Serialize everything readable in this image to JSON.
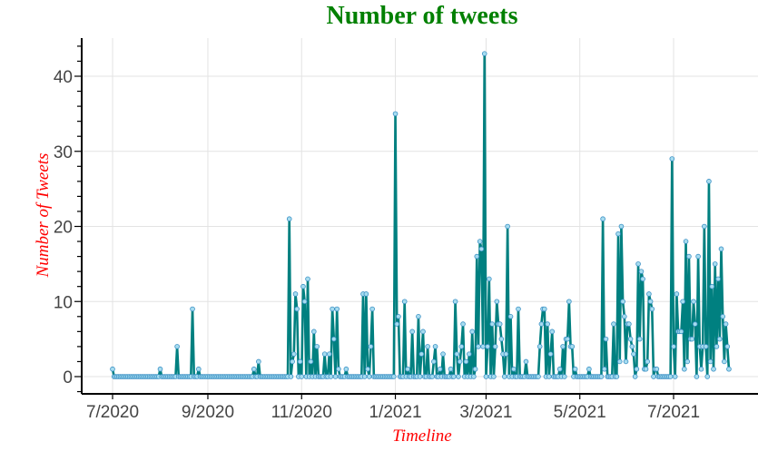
{
  "chart_data": {
    "type": "line",
    "title": "Number of tweets",
    "xlabel": "Timeline",
    "ylabel": "Number of Tweets",
    "ylim": [
      -2,
      45
    ],
    "grid": true,
    "legend": null,
    "x_ticks": [
      "7/2020",
      "9/2020",
      "11/2020",
      "1/2021",
      "3/2021",
      "5/2021",
      "7/2021"
    ],
    "y_ticks": [
      0,
      10,
      20,
      30,
      40
    ],
    "start_date": "2020-07-01",
    "line_color": "#008080",
    "marker_color": "#a6dcef",
    "marker_edge": "#3a8fc4",
    "peaks": [
      {
        "x": "2020-07-01",
        "y": 1
      },
      {
        "x": "2020-08-01",
        "y": 1
      },
      {
        "x": "2020-08-12",
        "y": 4
      },
      {
        "x": "2020-08-22",
        "y": 9
      },
      {
        "x": "2020-08-26",
        "y": 1
      },
      {
        "x": "2020-10-01",
        "y": 1
      },
      {
        "x": "2020-10-04",
        "y": 2
      },
      {
        "x": "2020-10-24",
        "y": 21
      },
      {
        "x": "2020-10-26",
        "y": 2
      },
      {
        "x": "2020-10-27",
        "y": 3
      },
      {
        "x": "2020-10-28",
        "y": 11
      },
      {
        "x": "2020-10-29",
        "y": 9
      },
      {
        "x": "2020-10-31",
        "y": 2
      },
      {
        "x": "2020-11-02",
        "y": 12
      },
      {
        "x": "2020-11-03",
        "y": 10
      },
      {
        "x": "2020-11-05",
        "y": 13
      },
      {
        "x": "2020-11-07",
        "y": 2
      },
      {
        "x": "2020-11-09",
        "y": 6
      },
      {
        "x": "2020-11-11",
        "y": 4
      },
      {
        "x": "2020-11-16",
        "y": 3
      },
      {
        "x": "2020-11-19",
        "y": 3
      },
      {
        "x": "2020-11-21",
        "y": 9
      },
      {
        "x": "2020-11-22",
        "y": 5
      },
      {
        "x": "2020-11-24",
        "y": 9
      },
      {
        "x": "2020-11-25",
        "y": 1
      },
      {
        "x": "2020-11-30",
        "y": 1
      },
      {
        "x": "2020-12-11",
        "y": 11
      },
      {
        "x": "2020-12-13",
        "y": 11
      },
      {
        "x": "2020-12-14",
        "y": 1
      },
      {
        "x": "2020-12-16",
        "y": 4
      },
      {
        "x": "2020-12-17",
        "y": 9
      },
      {
        "x": "2021-01-01",
        "y": 35
      },
      {
        "x": "2021-01-02",
        "y": 7
      },
      {
        "x": "2021-01-03",
        "y": 8
      },
      {
        "x": "2021-01-07",
        "y": 10
      },
      {
        "x": "2021-01-09",
        "y": 1
      },
      {
        "x": "2021-01-12",
        "y": 6
      },
      {
        "x": "2021-01-16",
        "y": 8
      },
      {
        "x": "2021-01-18",
        "y": 3
      },
      {
        "x": "2021-01-19",
        "y": 6
      },
      {
        "x": "2021-01-22",
        "y": 4
      },
      {
        "x": "2021-01-26",
        "y": 2
      },
      {
        "x": "2021-01-27",
        "y": 4
      },
      {
        "x": "2021-01-30",
        "y": 1
      },
      {
        "x": "2021-02-01",
        "y": 3
      },
      {
        "x": "2021-02-06",
        "y": 1
      },
      {
        "x": "2021-02-09",
        "y": 10
      },
      {
        "x": "2021-02-10",
        "y": 3
      },
      {
        "x": "2021-02-12",
        "y": 2
      },
      {
        "x": "2021-02-13",
        "y": 4
      },
      {
        "x": "2021-02-14",
        "y": 7
      },
      {
        "x": "2021-02-16",
        "y": 2
      },
      {
        "x": "2021-02-18",
        "y": 3
      },
      {
        "x": "2021-02-20",
        "y": 6
      },
      {
        "x": "2021-02-22",
        "y": 1
      },
      {
        "x": "2021-02-23",
        "y": 16
      },
      {
        "x": "2021-02-24",
        "y": 4
      },
      {
        "x": "2021-02-25",
        "y": 18
      },
      {
        "x": "2021-02-26",
        "y": 17
      },
      {
        "x": "2021-02-27",
        "y": 4
      },
      {
        "x": "2021-02-28",
        "y": 43
      },
      {
        "x": "2021-03-02",
        "y": 4
      },
      {
        "x": "2021-03-03",
        "y": 13
      },
      {
        "x": "2021-03-05",
        "y": 7
      },
      {
        "x": "2021-03-07",
        "y": 4
      },
      {
        "x": "2021-03-08",
        "y": 10
      },
      {
        "x": "2021-03-09",
        "y": 7
      },
      {
        "x": "2021-03-10",
        "y": 7
      },
      {
        "x": "2021-03-11",
        "y": 5
      },
      {
        "x": "2021-03-12",
        "y": 3
      },
      {
        "x": "2021-03-14",
        "y": 3
      },
      {
        "x": "2021-03-15",
        "y": 20
      },
      {
        "x": "2021-03-17",
        "y": 8
      },
      {
        "x": "2021-03-19",
        "y": 1
      },
      {
        "x": "2021-03-22",
        "y": 9
      },
      {
        "x": "2021-03-27",
        "y": 2
      },
      {
        "x": "2021-04-05",
        "y": 4
      },
      {
        "x": "2021-04-06",
        "y": 7
      },
      {
        "x": "2021-04-07",
        "y": 9
      },
      {
        "x": "2021-04-08",
        "y": 9
      },
      {
        "x": "2021-04-10",
        "y": 7
      },
      {
        "x": "2021-04-12",
        "y": 3
      },
      {
        "x": "2021-04-13",
        "y": 6
      },
      {
        "x": "2021-04-18",
        "y": 1
      },
      {
        "x": "2021-04-20",
        "y": 4
      },
      {
        "x": "2021-04-22",
        "y": 5
      },
      {
        "x": "2021-04-23",
        "y": 5
      },
      {
        "x": "2021-04-24",
        "y": 10
      },
      {
        "x": "2021-04-25",
        "y": 4
      },
      {
        "x": "2021-04-26",
        "y": 4
      },
      {
        "x": "2021-04-28",
        "y": 1
      },
      {
        "x": "2021-05-07",
        "y": 1
      },
      {
        "x": "2021-05-16",
        "y": 21
      },
      {
        "x": "2021-05-17",
        "y": 1
      },
      {
        "x": "2021-05-18",
        "y": 5
      },
      {
        "x": "2021-05-23",
        "y": 7
      },
      {
        "x": "2021-05-26",
        "y": 19
      },
      {
        "x": "2021-05-27",
        "y": 2
      },
      {
        "x": "2021-05-28",
        "y": 20
      },
      {
        "x": "2021-05-29",
        "y": 10
      },
      {
        "x": "2021-05-30",
        "y": 8
      },
      {
        "x": "2021-05-31",
        "y": 2
      },
      {
        "x": "2021-06-01",
        "y": 7
      },
      {
        "x": "2021-06-02",
        "y": 7
      },
      {
        "x": "2021-06-03",
        "y": 5
      },
      {
        "x": "2021-06-04",
        "y": 4
      },
      {
        "x": "2021-06-05",
        "y": 3
      },
      {
        "x": "2021-06-07",
        "y": 1
      },
      {
        "x": "2021-06-08",
        "y": 15
      },
      {
        "x": "2021-06-09",
        "y": 5
      },
      {
        "x": "2021-06-10",
        "y": 14
      },
      {
        "x": "2021-06-11",
        "y": 13
      },
      {
        "x": "2021-06-12",
        "y": 1
      },
      {
        "x": "2021-06-13",
        "y": 1
      },
      {
        "x": "2021-06-14",
        "y": 2
      },
      {
        "x": "2021-06-15",
        "y": 11
      },
      {
        "x": "2021-06-16",
        "y": 10
      },
      {
        "x": "2021-06-17",
        "y": 9
      },
      {
        "x": "2021-06-19",
        "y": 1
      },
      {
        "x": "2021-06-20",
        "y": 1
      },
      {
        "x": "2021-06-30",
        "y": 29
      },
      {
        "x": "2021-07-01",
        "y": 4
      },
      {
        "x": "2021-07-03",
        "y": 11
      },
      {
        "x": "2021-07-04",
        "y": 6
      },
      {
        "x": "2021-07-05",
        "y": 6
      },
      {
        "x": "2021-07-06",
        "y": 6
      },
      {
        "x": "2021-07-07",
        "y": 10
      },
      {
        "x": "2021-07-08",
        "y": 1
      },
      {
        "x": "2021-07-09",
        "y": 18
      },
      {
        "x": "2021-07-10",
        "y": 2
      },
      {
        "x": "2021-07-11",
        "y": 16
      },
      {
        "x": "2021-07-12",
        "y": 5
      },
      {
        "x": "2021-07-13",
        "y": 5
      },
      {
        "x": "2021-07-14",
        "y": 10
      },
      {
        "x": "2021-07-15",
        "y": 7
      },
      {
        "x": "2021-07-17",
        "y": 16
      },
      {
        "x": "2021-07-18",
        "y": 4
      },
      {
        "x": "2021-07-19",
        "y": 1
      },
      {
        "x": "2021-07-20",
        "y": 4
      },
      {
        "x": "2021-07-21",
        "y": 20
      },
      {
        "x": "2021-07-22",
        "y": 4
      },
      {
        "x": "2021-07-24",
        "y": 26
      },
      {
        "x": "2021-07-25",
        "y": 2
      },
      {
        "x": "2021-07-26",
        "y": 12
      },
      {
        "x": "2021-07-27",
        "y": 1
      },
      {
        "x": "2021-07-28",
        "y": 15
      },
      {
        "x": "2021-07-29",
        "y": 4
      },
      {
        "x": "2021-07-30",
        "y": 13
      },
      {
        "x": "2021-07-31",
        "y": 5
      },
      {
        "x": "2021-08-01",
        "y": 17
      },
      {
        "x": "2021-08-02",
        "y": 8
      },
      {
        "x": "2021-08-03",
        "y": 2
      },
      {
        "x": "2021-08-04",
        "y": 7
      },
      {
        "x": "2021-08-05",
        "y": 4
      },
      {
        "x": "2021-08-06",
        "y": 1
      }
    ]
  }
}
